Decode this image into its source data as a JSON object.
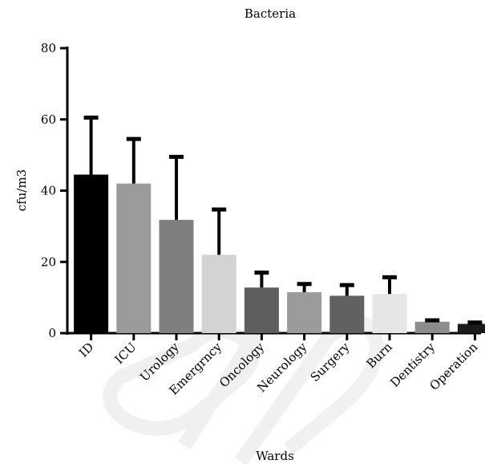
{
  "chart_data": {
    "type": "bar",
    "title": "Bacteria",
    "xlabel": "Wards",
    "ylabel": "cfu/m3",
    "ylim": [
      0,
      80
    ],
    "yticks": [
      0,
      20,
      40,
      60,
      80
    ],
    "categories": [
      "ID",
      "ICU",
      "Urology",
      "Emergrncy",
      "Oncology",
      "Neurology",
      "Surgery",
      "Burn",
      "Dentistry",
      "Operation"
    ],
    "values": [
      44.5,
      42,
      31.8,
      22,
      12.8,
      11.5,
      10.5,
      11,
      3.2,
      2.6
    ],
    "error_upper": [
      60.5,
      54.5,
      49.5,
      34.7,
      17,
      13.8,
      13.5,
      15.7,
      3.6,
      3
    ],
    "bar_colors": [
      "#000000",
      "#9b9b9b",
      "#7f7f7f",
      "#d3d3d3",
      "#5e5e5e",
      "#9b9b9b",
      "#616161",
      "#e6e6e6",
      "#8c8c8c",
      "#1a1a1a"
    ],
    "grid": false,
    "legend": "none"
  },
  "watermark": "SID"
}
